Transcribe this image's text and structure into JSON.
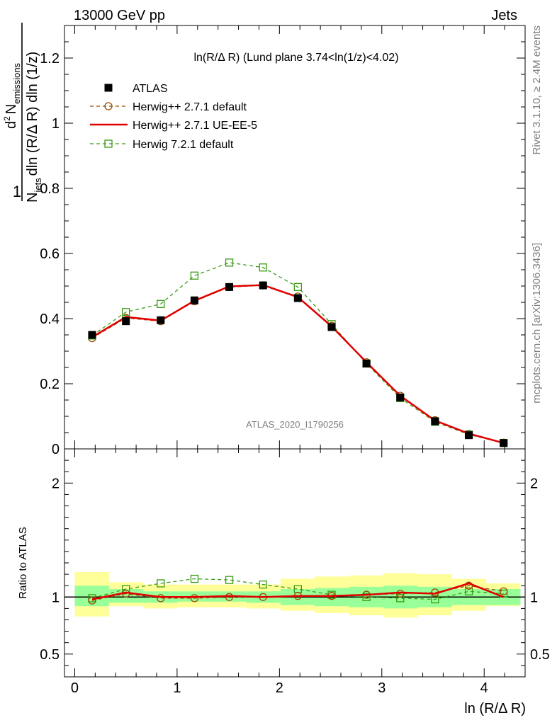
{
  "header": {
    "left": "13000 GeV pp",
    "right": "Jets"
  },
  "side": {
    "rivet": "Rivet 3.1.10, ≥ 2.4M events",
    "mcplots": "mcplots.cern.ch [arXiv:1306.3436]"
  },
  "chart_data": {
    "type": "line",
    "title": "ln(R/Δ R) (Lund plane 3.74<ln(1/z)<4.02)",
    "watermark": "ATLAS_2020_I1790256",
    "xlabel": "ln (R/Δ R)",
    "ylabel": "1/N_jets d²N_emissions / dln (R/Δ R) dln (1/z)",
    "ylabel_parts": {
      "one": "1",
      "d2": "d",
      "sup2": "2",
      "N": "N",
      "emissions": "emissions",
      "Njets_N": "N",
      "jets": "jets",
      "den": "dln (R/Δ R) dln (1/z)"
    },
    "ratio_ylabel": "Ratio to ATLAS",
    "xlim": [
      -0.1,
      4.4
    ],
    "ylim": [
      0,
      1.3
    ],
    "ratio_ylim": [
      0.3,
      2.3
    ],
    "x_ticks": [
      "0",
      "1",
      "2",
      "3",
      "4"
    ],
    "y_ticks": [
      "0",
      "0.2",
      "0.4",
      "0.6",
      "0.8",
      "1",
      "1.2"
    ],
    "ratio_ticks": [
      "0.5",
      "1",
      "2"
    ],
    "bin_edges": [
      0.0,
      0.335,
      0.67,
      1.005,
      1.34,
      1.675,
      2.01,
      2.345,
      2.68,
      3.015,
      3.35,
      3.685,
      4.02,
      4.355
    ],
    "x": [
      0.17,
      0.5,
      0.84,
      1.17,
      1.51,
      1.84,
      2.18,
      2.51,
      2.85,
      3.18,
      3.52,
      3.85,
      4.19
    ],
    "series": [
      {
        "name": "ATLAS",
        "color": "#000000",
        "style": "data",
        "values": [
          0.35,
          0.392,
          0.395,
          0.456,
          0.497,
          0.502,
          0.463,
          0.374,
          0.262,
          0.158,
          0.085,
          0.042,
          0.018
        ]
      },
      {
        "name": "Herwig++ 2.7.1 default",
        "color": "#994c00",
        "style": "dashed-circle",
        "values": [
          0.34,
          0.402,
          0.392,
          0.453,
          0.497,
          0.502,
          0.468,
          0.378,
          0.266,
          0.163,
          0.088,
          0.046,
          0.019
        ]
      },
      {
        "name": "Herwig++ 2.7.1 UE-EE-5",
        "color": "#e00000",
        "style": "solid",
        "values": [
          0.343,
          0.405,
          0.394,
          0.455,
          0.499,
          0.503,
          0.466,
          0.376,
          0.266,
          0.163,
          0.087,
          0.047,
          0.018
        ]
      },
      {
        "name": "Herwig 7.2.1 default",
        "color": "#3a9b15",
        "style": "dashed-square",
        "values": [
          0.348,
          0.42,
          0.445,
          0.532,
          0.572,
          0.557,
          0.497,
          0.383,
          0.262,
          0.156,
          0.083,
          0.044,
          0.018
        ]
      }
    ],
    "ratio_series": [
      {
        "name": "Herwig++ 2.7.1 default",
        "values": [
          0.97,
          1.03,
          0.99,
          0.99,
          1.0,
          1.0,
          1.01,
          1.01,
          1.02,
          1.03,
          1.04,
          1.1,
          1.05
        ]
      },
      {
        "name": "Herwig++ 2.7.1 UE-EE-5",
        "values": [
          0.98,
          1.04,
          1.0,
          1.0,
          1.01,
          1.0,
          1.01,
          1.01,
          1.02,
          1.04,
          1.03,
          1.12,
          1.0
        ]
      },
      {
        "name": "Herwig 7.2.1 default",
        "values": [
          0.99,
          1.07,
          1.12,
          1.16,
          1.15,
          1.11,
          1.07,
          1.02,
          1.0,
          0.99,
          0.98,
          1.05,
          1.03
        ]
      }
    ],
    "ratio_bands": {
      "inner_color": "#99ff99",
      "outer_color": "#ffff99",
      "inner": [
        [
          0.92,
          1.1
        ],
        [
          0.95,
          1.07
        ],
        [
          0.95,
          1.05
        ],
        [
          0.96,
          1.05
        ],
        [
          0.96,
          1.05
        ],
        [
          0.95,
          1.05
        ],
        [
          0.93,
          1.07
        ],
        [
          0.92,
          1.08
        ],
        [
          0.91,
          1.09
        ],
        [
          0.9,
          1.1
        ],
        [
          0.91,
          1.09
        ],
        [
          0.93,
          1.07
        ],
        [
          0.93,
          1.07
        ]
      ],
      "outer": [
        [
          0.83,
          1.22
        ],
        [
          0.92,
          1.13
        ],
        [
          0.9,
          1.11
        ],
        [
          0.91,
          1.11
        ],
        [
          0.91,
          1.11
        ],
        [
          0.9,
          1.11
        ],
        [
          0.88,
          1.16
        ],
        [
          0.86,
          1.18
        ],
        [
          0.84,
          1.19
        ],
        [
          0.82,
          1.21
        ],
        [
          0.84,
          1.2
        ],
        [
          0.88,
          1.16
        ],
        [
          0.92,
          1.12
        ]
      ]
    }
  }
}
